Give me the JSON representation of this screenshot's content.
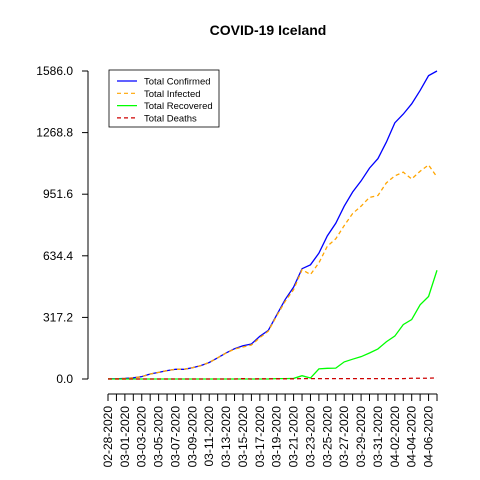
{
  "chart_data": {
    "type": "line",
    "title": "COVID-19 Iceland",
    "xlabel": "",
    "ylabel": "",
    "ylim": [
      0,
      1586
    ],
    "y_ticks": [
      "0.0",
      "317.2",
      "634.4",
      "951.6",
      "1268.8",
      "1586.0"
    ],
    "y_tick_values": [
      0,
      317.2,
      634.4,
      951.6,
      1268.8,
      1586.0
    ],
    "x": [
      "02-28-2020",
      "02-29-2020",
      "03-01-2020",
      "03-02-2020",
      "03-03-2020",
      "03-04-2020",
      "03-05-2020",
      "03-06-2020",
      "03-07-2020",
      "03-08-2020",
      "03-09-2020",
      "03-10-2020",
      "03-11-2020",
      "03-12-2020",
      "03-13-2020",
      "03-14-2020",
      "03-15-2020",
      "03-16-2020",
      "03-17-2020",
      "03-18-2020",
      "03-19-2020",
      "03-20-2020",
      "03-21-2020",
      "03-22-2020",
      "03-23-2020",
      "03-24-2020",
      "03-25-2020",
      "03-26-2020",
      "03-27-2020",
      "03-28-2020",
      "03-29-2020",
      "03-30-2020",
      "03-31-2020",
      "04-01-2020",
      "04-02-2020",
      "04-03-2020",
      "04-04-2020",
      "04-05-2020",
      "04-06-2020",
      "04-07-2020"
    ],
    "x_tick_labels": [
      "02-28-2020",
      "03-01-2020",
      "03-03-2020",
      "03-05-2020",
      "03-07-2020",
      "03-09-2020",
      "03-11-2020",
      "03-13-2020",
      "03-15-2020",
      "03-17-2020",
      "03-19-2020",
      "03-21-2020",
      "03-23-2020",
      "03-25-2020",
      "03-27-2020",
      "03-29-2020",
      "03-31-2020",
      "04-02-2020",
      "04-04-2020",
      "04-06-2020"
    ],
    "legend_position": "top-left",
    "grid": false,
    "series": [
      {
        "name": "Total Confirmed",
        "color": "#0000ff",
        "dash": "solid",
        "values": [
          1,
          1,
          3,
          6,
          12,
          26,
          34,
          43,
          50,
          50,
          58,
          69,
          85,
          109,
          134,
          156,
          171,
          180,
          220,
          250,
          330,
          409,
          473,
          568,
          588,
          648,
          737,
          802,
          890,
          963,
          1020,
          1086,
          1135,
          1220,
          1319,
          1364,
          1417,
          1486,
          1562,
          1586
        ]
      },
      {
        "name": "Total Infected",
        "color": "#ffa500",
        "dash": "dashed",
        "values": [
          1,
          1,
          3,
          6,
          12,
          26,
          34,
          43,
          50,
          50,
          58,
          69,
          85,
          109,
          134,
          154,
          165,
          175,
          213,
          246,
          325,
          400,
          460,
          563,
          538,
          598,
          684,
          722,
          790,
          852,
          890,
          935,
          945,
          1010,
          1046,
          1065,
          1030,
          1070,
          1102,
          1040
        ]
      },
      {
        "name": "Total Recovered",
        "color": "#00ff00",
        "dash": "solid",
        "values": [
          0,
          0,
          0,
          0,
          0,
          0,
          0,
          0,
          0,
          0,
          0,
          0,
          0,
          0,
          0,
          0,
          0,
          0,
          0,
          0,
          2,
          2,
          3,
          17,
          5,
          52,
          55,
          56,
          88,
          102,
          115,
          134,
          155,
          192,
          221,
          280,
          306,
          382,
          425,
          560
        ]
      },
      {
        "name": "Total Deaths",
        "color": "#cd0000",
        "dash": "dashed",
        "values": [
          0,
          0,
          0,
          0,
          0,
          0,
          0,
          0,
          0,
          0,
          0,
          0,
          0,
          0,
          0,
          0,
          2,
          0,
          1,
          1,
          1,
          1,
          1,
          2,
          2,
          2,
          2,
          2,
          2,
          2,
          2,
          2,
          2,
          2,
          2,
          2,
          4,
          4,
          4,
          6
        ]
      }
    ]
  }
}
